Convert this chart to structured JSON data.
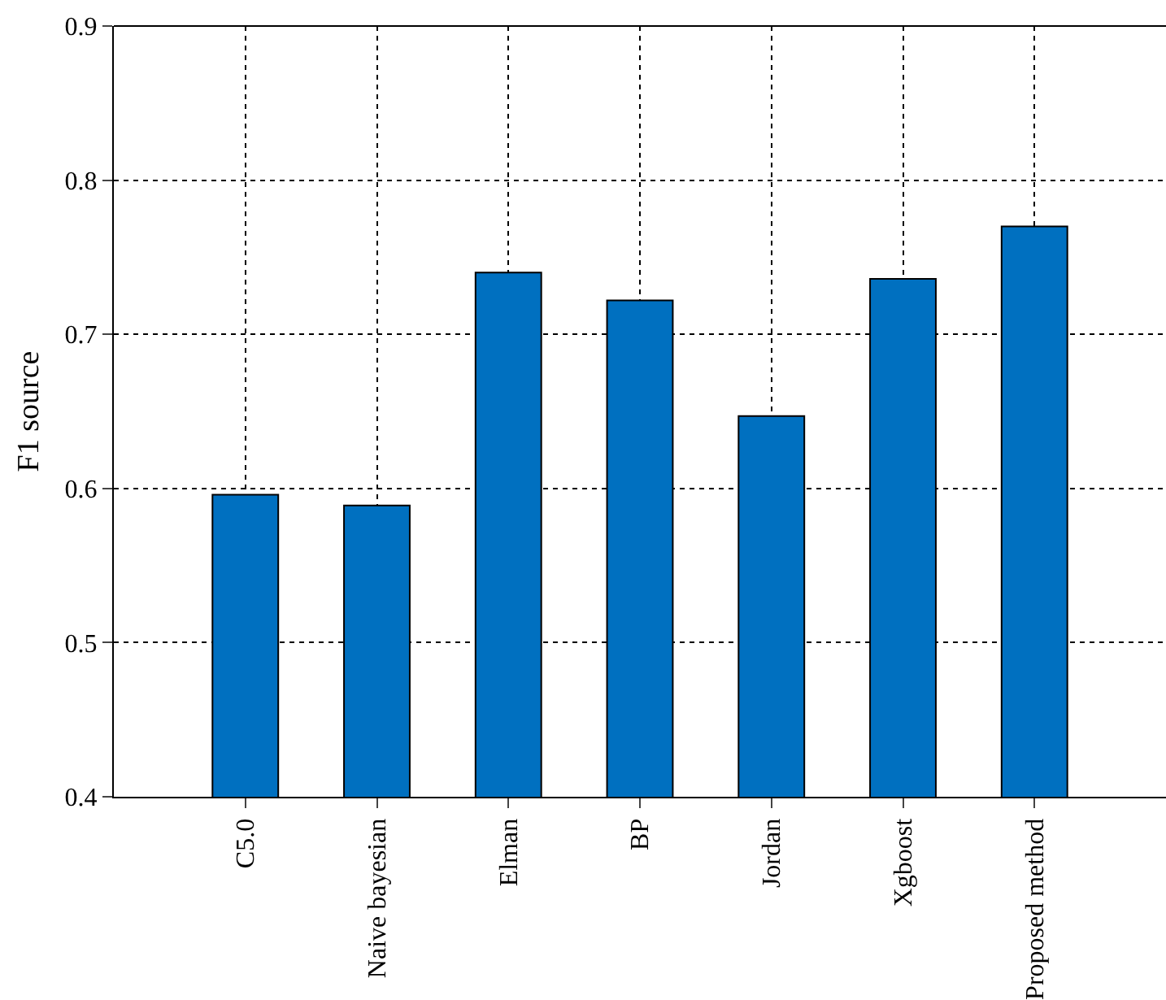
{
  "chart_data": {
    "type": "bar",
    "ylabel": "F1 source",
    "categories": [
      "C5.0",
      "Naive bayesian",
      "Elman",
      "BP",
      "Jordan",
      "Xgboost",
      "Proposed method"
    ],
    "values": [
      0.596,
      0.589,
      0.74,
      0.722,
      0.647,
      0.736,
      0.77
    ],
    "color": "#0070c0",
    "ylim": [
      0.4,
      0.9
    ],
    "yticks": [
      0.4,
      0.5,
      0.6,
      0.7,
      0.8,
      0.9
    ],
    "grid": true
  }
}
